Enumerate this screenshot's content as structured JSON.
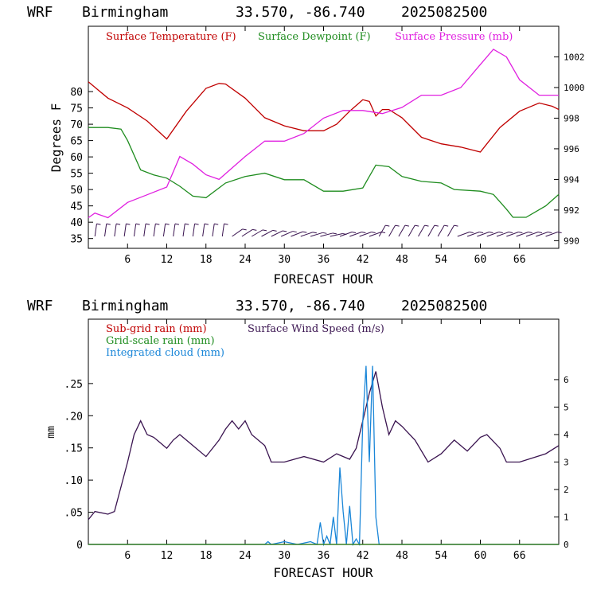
{
  "charts": [
    {
      "header": {
        "model": "WRF",
        "location": "Birmingham",
        "coords": "33.570, -86.740",
        "init": "2025082500"
      },
      "xlabel": "FORECAST HOUR",
      "ylabel": "Degrees F",
      "legend": [
        {
          "text": "Surface Temperature (F)",
          "color": "#c00000"
        },
        {
          "text": "Surface Dewpoint (F)",
          "color": "#1e8c1e"
        },
        {
          "text": "Surface Pressure (mb)",
          "color": "#e020e0"
        }
      ]
    },
    {
      "header": {
        "model": "WRF",
        "location": "Birmingham",
        "coords": "33.570, -86.740",
        "init": "2025082500"
      },
      "xlabel": "FORECAST HOUR",
      "ylabel": "mm",
      "legend": [
        {
          "text": "Sub-grid rain (mm)",
          "color": "#c00000"
        },
        {
          "text": "Surface Wind Speed (m/s)",
          "color": "#3a1450"
        },
        {
          "text": "Grid-scale rain (mm)",
          "color": "#1e8c1e"
        },
        {
          "text": "Integrated cloud (mm)",
          "color": "#1a86d8"
        }
      ]
    }
  ],
  "chart_data": [
    {
      "type": "line",
      "xlim": [
        0,
        72
      ],
      "ylim": [
        32,
        100
      ],
      "y2lim": [
        989.5,
        1004
      ],
      "x_ticks": [
        6,
        12,
        18,
        24,
        30,
        36,
        42,
        48,
        54,
        60,
        66
      ],
      "y_ticks": [
        35,
        40,
        45,
        50,
        55,
        60,
        65,
        70,
        75,
        80
      ],
      "y2_ticks": [
        990,
        992,
        994,
        996,
        998,
        1000,
        1002
      ],
      "series": [
        {
          "name": "Surface Temperature (F)",
          "axis": "left",
          "color": "#c00000",
          "x": [
            0,
            3,
            6,
            9,
            12,
            15,
            18,
            20,
            21,
            24,
            27,
            30,
            33,
            36,
            38,
            40,
            42,
            43,
            44,
            45,
            46,
            48,
            51,
            54,
            57,
            60,
            61,
            63,
            66,
            69,
            71,
            72
          ],
          "y": [
            83,
            78,
            75,
            71,
            65.5,
            74,
            81,
            82.5,
            82.3,
            78,
            72,
            69.5,
            68,
            68,
            70,
            74,
            77.5,
            77,
            72.5,
            74.5,
            74.5,
            72,
            66,
            64,
            63,
            61.5,
            64,
            69,
            74,
            76.5,
            75.5,
            74.5
          ]
        },
        {
          "name": "Surface Dewpoint (F)",
          "axis": "left",
          "color": "#1e8c1e",
          "x": [
            0,
            3,
            5,
            6,
            8,
            10,
            12,
            14,
            16,
            18,
            21,
            24,
            27,
            30,
            33,
            36,
            39,
            42,
            43,
            44,
            46,
            48,
            51,
            54,
            56,
            60,
            62,
            64,
            65,
            67,
            70,
            72
          ],
          "y": [
            69,
            69,
            68.5,
            65,
            56,
            54.5,
            53.5,
            51,
            48,
            47.5,
            52,
            54,
            55,
            53,
            53,
            49.5,
            49.5,
            50.5,
            54,
            57.5,
            57,
            54,
            52.5,
            52,
            50,
            49.5,
            48.5,
            44,
            41.5,
            41.5,
            45,
            48.5
          ]
        },
        {
          "name": "Surface Pressure (mb)",
          "axis": "right",
          "color": "#e020e0",
          "x": [
            0,
            1,
            3,
            6,
            9,
            12,
            14,
            16,
            18,
            20,
            24,
            27,
            30,
            33,
            36,
            39,
            42,
            45,
            48,
            51,
            54,
            57,
            60,
            62,
            64,
            66,
            69,
            72
          ],
          "y": [
            991.5,
            991.8,
            991.5,
            992.5,
            993,
            993.5,
            995.5,
            995,
            994.3,
            994,
            995.5,
            996.5,
            996.5,
            997,
            998,
            998.5,
            998.5,
            998.3,
            998.7,
            999.5,
            999.5,
            1000,
            1001.5,
            1002.5,
            1002,
            1000.5,
            999.5,
            999.5
          ]
        }
      ],
      "wind_barbs": "row of purple wind barbs along the bottom at each forecast hour"
    },
    {
      "type": "line",
      "xlim": [
        0,
        72
      ],
      "ylim": [
        0,
        0.35
      ],
      "y2lim": [
        0,
        8.2
      ],
      "x_ticks": [
        6,
        12,
        18,
        24,
        30,
        36,
        42,
        48,
        54,
        60,
        66
      ],
      "y_ticks": [
        0,
        0.05,
        0.1,
        0.15,
        0.2,
        0.25
      ],
      "y_tick_labels": [
        "0",
        ".05",
        ".10",
        ".15",
        ".20",
        ".25"
      ],
      "y2_ticks": [
        0,
        1,
        2,
        3,
        4,
        5,
        6
      ],
      "series": [
        {
          "name": "Surface Wind Speed (m/s)",
          "axis": "right",
          "color": "#3a1450",
          "x": [
            0,
            1,
            3,
            4,
            6,
            7,
            8,
            9,
            10,
            11,
            12,
            13,
            14,
            16,
            18,
            20,
            21,
            22,
            23,
            24,
            25,
            27,
            28,
            30,
            33,
            36,
            38,
            40,
            41,
            42,
            43,
            44,
            45,
            46,
            47,
            48,
            50,
            52,
            54,
            56,
            58,
            60,
            61,
            63,
            64,
            66,
            70,
            72
          ],
          "y": [
            0.9,
            1.2,
            1.1,
            1.2,
            3.0,
            4.0,
            4.5,
            4.0,
            3.9,
            3.7,
            3.5,
            3.8,
            4.0,
            3.6,
            3.2,
            3.8,
            4.2,
            4.5,
            4.2,
            4.5,
            4.0,
            3.6,
            3.0,
            3.0,
            3.2,
            3.0,
            3.3,
            3.1,
            3.5,
            4.5,
            5.5,
            6.3,
            5.0,
            4.0,
            4.5,
            4.3,
            3.8,
            3.0,
            3.3,
            3.8,
            3.4,
            3.9,
            4.0,
            3.5,
            3.0,
            3.0,
            3.3,
            3.6
          ]
        },
        {
          "name": "Integrated cloud (mm)",
          "axis": "right",
          "color": "#1a86d8",
          "x": [
            0,
            27,
            27.5,
            28,
            30,
            32,
            34,
            35,
            35.5,
            36,
            36.5,
            37,
            37.5,
            38,
            38.5,
            39,
            39.5,
            40,
            40.5,
            41,
            41.5,
            42,
            42.5,
            43,
            43.5,
            44,
            44.5,
            45,
            72
          ],
          "y": [
            0,
            0,
            0.1,
            0,
            0.1,
            0,
            0.1,
            0,
            0.8,
            0,
            0.3,
            0,
            1.0,
            0,
            2.8,
            1.2,
            0,
            1.4,
            0,
            0.2,
            0,
            4.5,
            6.5,
            3.0,
            6.5,
            1.0,
            0,
            0,
            0
          ]
        },
        {
          "name": "Sub-grid rain (mm)",
          "axis": "left",
          "color": "#c00000",
          "x": [
            0,
            72
          ],
          "y": [
            0,
            0
          ]
        },
        {
          "name": "Grid-scale rain (mm)",
          "axis": "left",
          "color": "#1e8c1e",
          "x": [
            0,
            72
          ],
          "y": [
            0,
            0
          ]
        }
      ]
    }
  ]
}
